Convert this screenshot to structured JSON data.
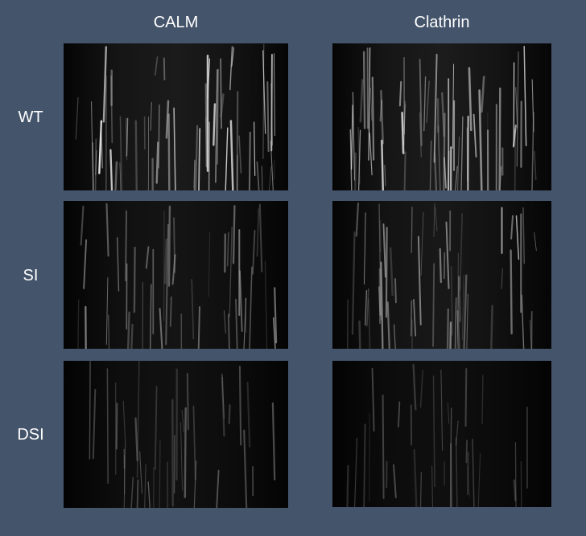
{
  "columns": [
    "CALM",
    "Clathrin"
  ],
  "rows": [
    "WT",
    "SI",
    "DSI"
  ],
  "panels": [
    {
      "row": "WT",
      "column": "CALM",
      "brightness": 0.95
    },
    {
      "row": "WT",
      "column": "Clathrin",
      "brightness": 1.0
    },
    {
      "row": "SI",
      "column": "CALM",
      "brightness": 0.6
    },
    {
      "row": "SI",
      "column": "Clathrin",
      "brightness": 0.8
    },
    {
      "row": "DSI",
      "column": "CALM",
      "brightness": 0.4
    },
    {
      "row": "DSI",
      "column": "Clathrin",
      "brightness": 0.3
    }
  ]
}
